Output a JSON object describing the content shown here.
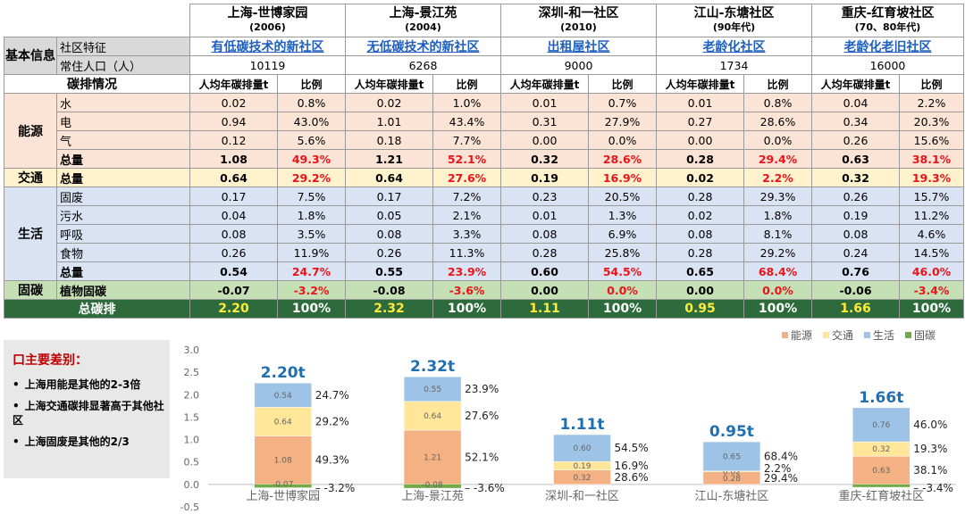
{
  "table": {
    "communities": [
      {
        "name": "上海-世博家园",
        "year": "(2006)",
        "feature": "有低碳技术的新社区",
        "population": "10119"
      },
      {
        "name": "上海-景江苑",
        "year": "(2004)",
        "feature": "无低碳技术的新社区",
        "population": "6268"
      },
      {
        "name": "深圳-和一社区",
        "year": "(2010)",
        "feature": "出租屋社区",
        "population": "9000"
      },
      {
        "name": "江山-东塘社区",
        "year": "(90年代)",
        "feature": "老龄化社区",
        "population": "1734"
      },
      {
        "name": "重庆-红育坡社区",
        "year": "(70、80年代)",
        "feature": "老龄化老旧社区",
        "population": "16000"
      }
    ],
    "basic_label": "基本信息",
    "feature_label": "社区特征",
    "population_label": "常住人口（人）",
    "carbon_label": "碳排情况",
    "per_capita_label": "人均年碳排量t",
    "ratio_label": "比例",
    "groups": [
      {
        "name": "能源",
        "color": "pink",
        "rows": [
          {
            "label": "水",
            "bold": false,
            "values": [
              [
                "0.02",
                "0.8%"
              ],
              [
                "0.02",
                "1.0%"
              ],
              [
                "0.01",
                "0.7%"
              ],
              [
                "0.01",
                "0.8%"
              ],
              [
                "0.04",
                "2.2%"
              ]
            ]
          },
          {
            "label": "电",
            "bold": false,
            "values": [
              [
                "0.94",
                "43.0%"
              ],
              [
                "1.01",
                "43.4%"
              ],
              [
                "0.31",
                "27.9%"
              ],
              [
                "0.27",
                "28.6%"
              ],
              [
                "0.34",
                "20.3%"
              ]
            ]
          },
          {
            "label": "气",
            "bold": false,
            "values": [
              [
                "0.12",
                "5.6%"
              ],
              [
                "0.18",
                "7.7%"
              ],
              [
                "0.00",
                "0.0%"
              ],
              [
                "0.00",
                "0.0%"
              ],
              [
                "0.26",
                "15.6%"
              ]
            ]
          },
          {
            "label": "总量",
            "bold": true,
            "values": [
              [
                "1.08",
                "49.3%"
              ],
              [
                "1.21",
                "52.1%"
              ],
              [
                "0.32",
                "28.6%"
              ],
              [
                "0.28",
                "29.4%"
              ],
              [
                "0.63",
                "38.1%"
              ]
            ]
          }
        ]
      },
      {
        "name": "交通",
        "color": "yel",
        "rows": [
          {
            "label": "总量",
            "bold": true,
            "values": [
              [
                "0.64",
                "29.2%"
              ],
              [
                "0.64",
                "27.6%"
              ],
              [
                "0.19",
                "16.9%"
              ],
              [
                "0.02",
                "2.2%"
              ],
              [
                "0.32",
                "19.3%"
              ]
            ]
          }
        ]
      },
      {
        "name": "生活",
        "color": "blue",
        "rows": [
          {
            "label": "固废",
            "bold": false,
            "values": [
              [
                "0.17",
                "7.5%"
              ],
              [
                "0.17",
                "7.2%"
              ],
              [
                "0.23",
                "20.5%"
              ],
              [
                "0.28",
                "29.3%"
              ],
              [
                "0.26",
                "15.7%"
              ]
            ]
          },
          {
            "label": "污水",
            "bold": false,
            "values": [
              [
                "0.04",
                "1.8%"
              ],
              [
                "0.05",
                "2.1%"
              ],
              [
                "0.01",
                "1.3%"
              ],
              [
                "0.02",
                "1.8%"
              ],
              [
                "0.19",
                "11.2%"
              ]
            ]
          },
          {
            "label": "呼吸",
            "bold": false,
            "values": [
              [
                "0.08",
                "3.5%"
              ],
              [
                "0.08",
                "3.3%"
              ],
              [
                "0.08",
                "6.9%"
              ],
              [
                "0.08",
                "8.1%"
              ],
              [
                "0.08",
                "4.6%"
              ]
            ]
          },
          {
            "label": "食物",
            "bold": false,
            "values": [
              [
                "0.26",
                "11.9%"
              ],
              [
                "0.26",
                "11.3%"
              ],
              [
                "0.28",
                "25.8%"
              ],
              [
                "0.28",
                "29.2%"
              ],
              [
                "0.24",
                "14.5%"
              ]
            ]
          },
          {
            "label": "总量",
            "bold": true,
            "values": [
              [
                "0.54",
                "24.7%"
              ],
              [
                "0.55",
                "23.9%"
              ],
              [
                "0.60",
                "54.5%"
              ],
              [
                "0.65",
                "68.4%"
              ],
              [
                "0.76",
                "46.0%"
              ]
            ]
          }
        ]
      },
      {
        "name": "固碳",
        "color": "grn",
        "rows": [
          {
            "label": "植物固碳",
            "bold": true,
            "values": [
              [
                "-0.07",
                "-3.2%"
              ],
              [
                "-0.08",
                "-3.6%"
              ],
              [
                "0.00",
                "0.0%"
              ],
              [
                "0.00",
                "0.0%"
              ],
              [
                "-0.06",
                "-3.4%"
              ]
            ]
          }
        ]
      }
    ],
    "total_label": "总碳排",
    "totals": [
      [
        "2.20",
        "100%"
      ],
      [
        "2.32",
        "100%"
      ],
      [
        "1.11",
        "100%"
      ],
      [
        "0.95",
        "100%"
      ],
      [
        "1.66",
        "100%"
      ]
    ]
  },
  "notes": {
    "title": "口主要差别：",
    "items": [
      "上海用能是其他的2-3倍",
      "上海交通碳排显著高于其他社区",
      "上海固废是其他的2/3"
    ]
  },
  "chart_data": {
    "type": "bar",
    "stacked": true,
    "categories": [
      "上海-世博家园",
      "上海-景江苑",
      "深圳-和一社区",
      "江山-东塘社区",
      "重庆-红育坡社区"
    ],
    "series": [
      {
        "name": "能源",
        "color": "#f4b183",
        "values": [
          1.08,
          1.21,
          0.32,
          0.28,
          0.63
        ],
        "labels": [
          "1.08",
          "1.21",
          "0.32",
          "0.28",
          "0.63"
        ],
        "shares": [
          "49.3%",
          "52.1%",
          "28.6%",
          "29.4%",
          "38.1%"
        ]
      },
      {
        "name": "交通",
        "color": "#ffe699",
        "values": [
          0.64,
          0.64,
          0.19,
          0.02,
          0.32
        ],
        "labels": [
          "0.64",
          "0.64",
          "0.19",
          "0.02",
          "0.32"
        ],
        "shares": [
          "29.2%",
          "27.6%",
          "16.9%",
          "2.2%",
          "19.3%"
        ]
      },
      {
        "name": "生活",
        "color": "#9dc3e6",
        "values": [
          0.54,
          0.55,
          0.6,
          0.65,
          0.76
        ],
        "labels": [
          "0.54",
          "0.55",
          "0.60",
          "0.65",
          "0.76"
        ],
        "shares": [
          "24.7%",
          "23.9%",
          "54.5%",
          "68.4%",
          "46.0%"
        ]
      },
      {
        "name": "固碳",
        "color": "#70ad47",
        "values": [
          -0.07,
          -0.08,
          0.0,
          0.0,
          -0.06
        ],
        "labels": [
          "-0.07",
          "-0.08",
          "",
          "",
          ""
        ],
        "shares": [
          "-3.2%",
          "-3.6%",
          "",
          "",
          "-3.4%"
        ]
      }
    ],
    "totals": [
      "2.20t",
      "2.32t",
      "1.11t",
      "0.95t",
      "1.66t"
    ],
    "yticks": [
      "3.0",
      "2.5",
      "2.0",
      "1.5",
      "1.0",
      "0.5",
      "0.0",
      "-0.5"
    ],
    "ylim": [
      -0.5,
      3.0
    ],
    "grid": false,
    "legend": "top-right"
  }
}
